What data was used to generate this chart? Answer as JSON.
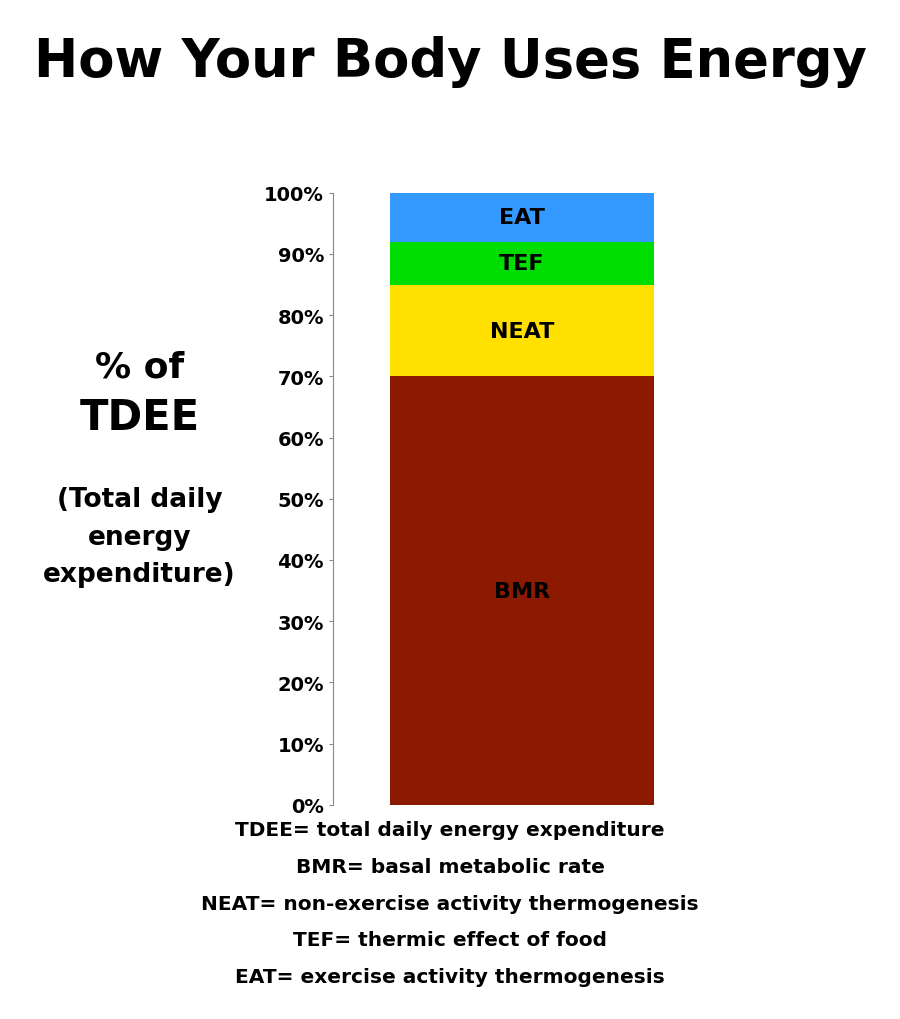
{
  "title": "How Your Body Uses Energy",
  "title_fontsize": 38,
  "title_fontweight": "bold",
  "background_color": "#ffffff",
  "bar_segments": [
    {
      "label": "BMR",
      "value": 70,
      "color": "#8B1A00"
    },
    {
      "label": "NEAT",
      "value": 15,
      "color": "#FFE000"
    },
    {
      "label": "TEF",
      "value": 7,
      "color": "#00DD00"
    },
    {
      "label": "EAT",
      "value": 8,
      "color": "#3399FF"
    }
  ],
  "ylabel_line1": "% of",
  "ylabel_line2": "TDEE",
  "ylabel_line3": "(Total daily",
  "ylabel_line4": "energy",
  "ylabel_line5": "expenditure)",
  "ylabel_fontsize_large": 26,
  "ylabel_fontsize_small": 19,
  "ylabel_fontweight": "bold",
  "ytick_labels": [
    "0%",
    "10%",
    "20%",
    "30%",
    "40%",
    "50%",
    "60%",
    "70%",
    "80%",
    "90%",
    "100%"
  ],
  "ytick_values": [
    0,
    10,
    20,
    30,
    40,
    50,
    60,
    70,
    80,
    90,
    100
  ],
  "legend_lines": [
    "TDEE= total daily energy expenditure",
    "BMR= basal metabolic rate",
    "NEAT= non-exercise activity thermogenesis",
    "TEF= thermic effect of food",
    "EAT= exercise activity thermogenesis"
  ],
  "legend_fontsize": 14.5,
  "segment_label_fontsize": 16,
  "segment_label_fontweight": "bold"
}
